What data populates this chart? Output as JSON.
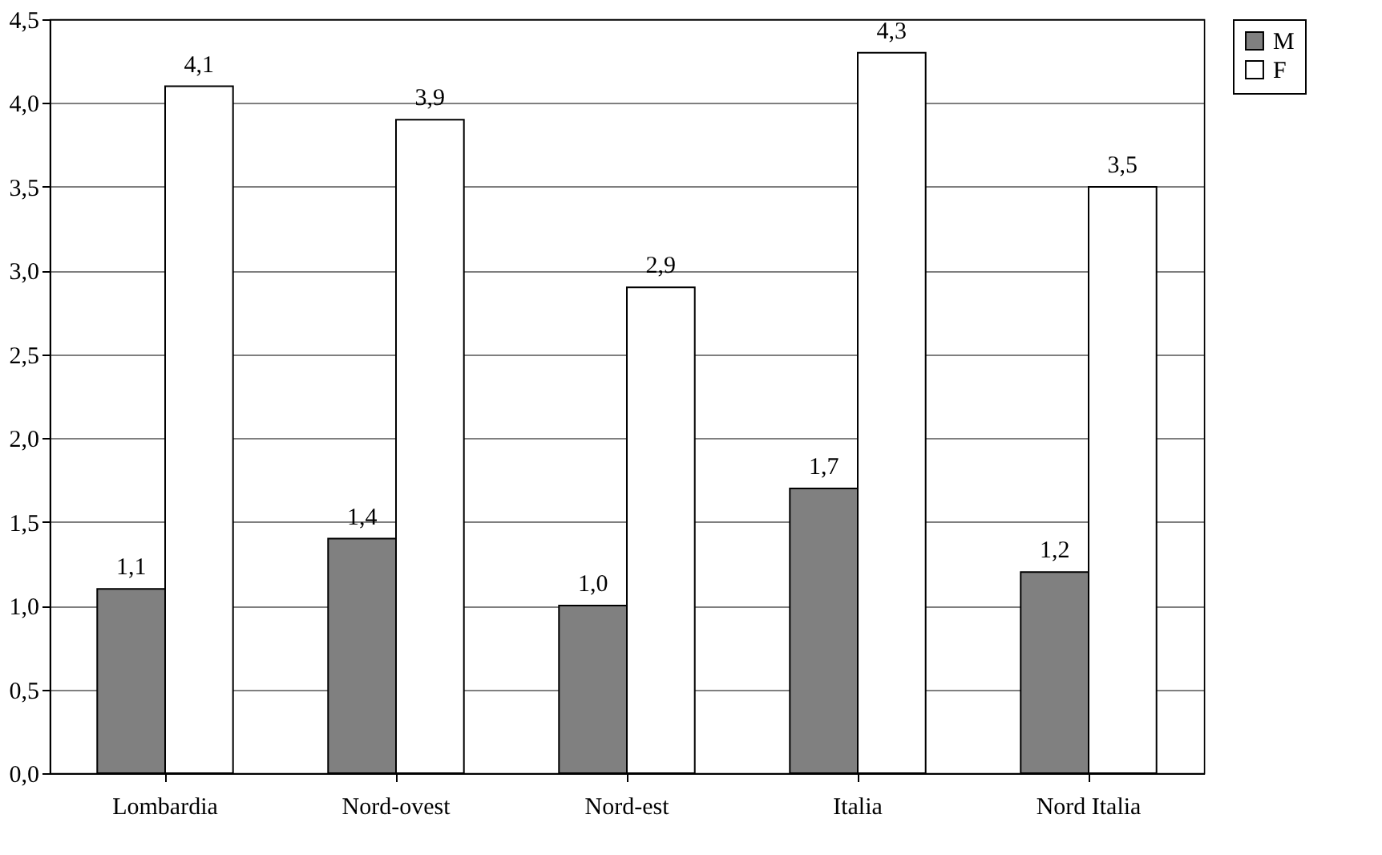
{
  "chart_data": {
    "type": "bar",
    "categories": [
      "Lombardia",
      "Nord-ovest",
      "Nord-est",
      "Italia",
      "Nord Italia"
    ],
    "series": [
      {
        "name": "M",
        "color": "#808080",
        "values": [
          1.1,
          1.4,
          1.0,
          1.7,
          1.2
        ],
        "value_labels": [
          "1,1",
          "1,4",
          "1,0",
          "1,7",
          "1,2"
        ]
      },
      {
        "name": "F",
        "color": "#ffffff",
        "values": [
          4.1,
          3.9,
          2.9,
          4.3,
          3.5
        ],
        "value_labels": [
          "4,1",
          "3,9",
          "2,9",
          "4,3",
          "3,5"
        ]
      }
    ],
    "ylim": [
      0,
      4.5
    ],
    "yticks": [
      {
        "value": 0,
        "label": "0,0"
      },
      {
        "value": 0.5,
        "label": "0,5"
      },
      {
        "value": 1,
        "label": "1,0"
      },
      {
        "value": 1.5,
        "label": "1,5"
      },
      {
        "value": 2,
        "label": "2,0"
      },
      {
        "value": 2.5,
        "label": "2,5"
      },
      {
        "value": 3,
        "label": "3,0"
      },
      {
        "value": 3.5,
        "label": "3,5"
      },
      {
        "value": 4,
        "label": "4,0"
      },
      {
        "value": 4.5,
        "label": "4,5"
      }
    ],
    "grid": "y",
    "legend": "right"
  }
}
